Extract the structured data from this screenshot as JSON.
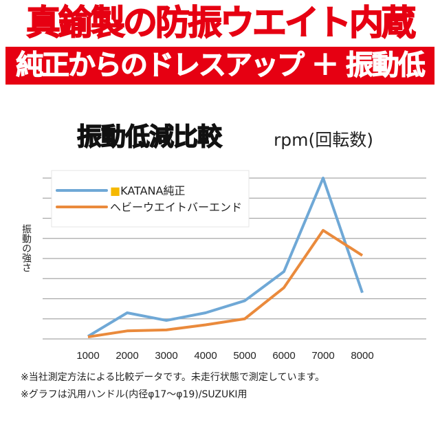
{
  "header": {
    "title": "真鍮製の防振ウエイト内蔵",
    "subtitle": "純正からのドレスアップ ＋ 振動低減"
  },
  "chart_data": {
    "type": "line",
    "title": "振動低減比較",
    "xlabel": "rpm(回転数)",
    "ylabel": "振動の強さ",
    "categories": [
      "1000",
      "2000",
      "3000",
      "4000",
      "5000",
      "6000",
      "7000",
      "8000"
    ],
    "ylim": [
      0,
      8
    ],
    "grid": true,
    "legend_position": "top-left",
    "series": [
      {
        "name": "■KATANA純正",
        "color": "#6fa8d6",
        "values": [
          0.13,
          1.3,
          0.92,
          1.3,
          1.9,
          3.35,
          8.0,
          2.3
        ]
      },
      {
        "name": "ヘビーウエイトバーエンド",
        "color": "#ea8a3c",
        "values": [
          0.1,
          0.4,
          0.45,
          0.7,
          1.0,
          2.55,
          5.4,
          4.15
        ]
      }
    ]
  },
  "notes": [
    "※当社測定方法による比較データです。未走行状態で測定しています。",
    "※グラフは汎用ハンドル(内径φ17〜φ19)/SUZUKI用"
  ]
}
